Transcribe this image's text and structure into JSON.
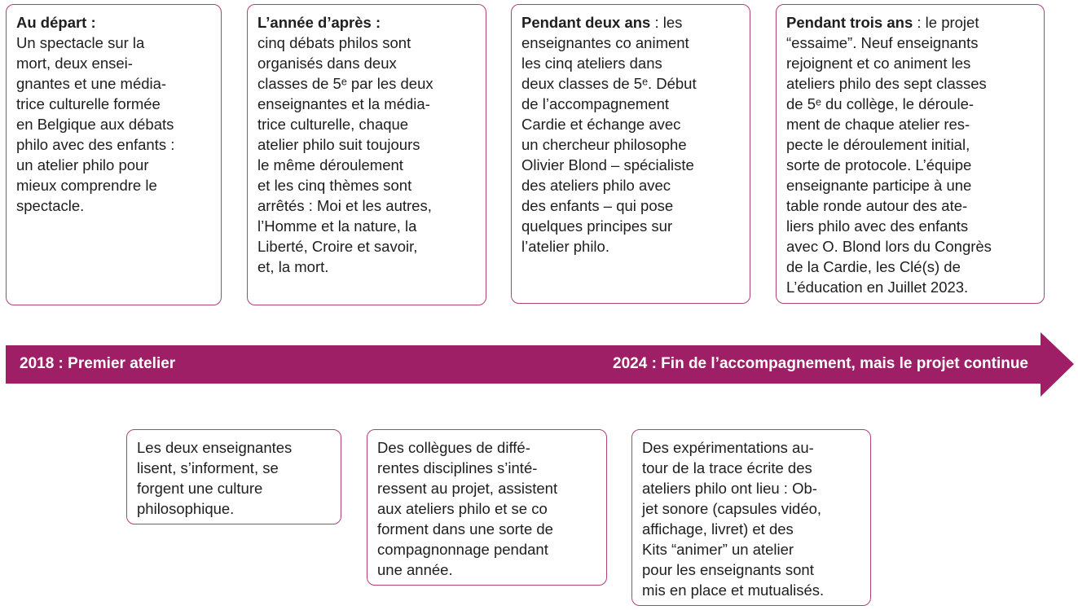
{
  "colors": {
    "accent": "#9e1f66",
    "border": "#b0407c"
  },
  "timeline": {
    "start_label": "2018 : Premier atelier",
    "end_label": "2024 : Fin de l’accompagnement, mais le projet continue"
  },
  "top_boxes": [
    {
      "bold": "Au départ :",
      "rest": "",
      "lines": [
        "Un spectacle sur la",
        "mort, deux ensei-",
        "gnantes et une média-",
        "trice culturelle formée",
        "en Belgique aux débats",
        "philo avec des enfants :",
        "un atelier philo pour",
        "mieux comprendre le",
        "spectacle."
      ]
    },
    {
      "bold": "L’année d’après :",
      "rest": "",
      "lines": [
        "cinq débats philos sont",
        "organisés dans deux",
        "classes de 5ᵉ par les deux",
        "enseignantes et la média-",
        "trice culturelle, chaque",
        "atelier philo suit toujours",
        "le même déroulement",
        "et les cinq thèmes sont",
        "arrêtés : Moi et les autres,",
        "l’Homme et la nature, la",
        "Liberté, Croire et savoir,",
        "et, la mort."
      ]
    },
    {
      "bold": "Pendant deux ans",
      "rest": " : les",
      "lines": [
        "enseignantes co animent",
        "les cinq ateliers dans",
        "deux classes de 5ᵉ. Début",
        "de l’accompagnement",
        "Cardie et échange avec",
        "un chercheur philosophe",
        "Olivier Blond – spécialiste",
        "des ateliers philo avec",
        "des enfants – qui pose",
        "quelques principes sur",
        "l’atelier philo."
      ]
    },
    {
      "bold": "Pendant trois ans",
      "rest": " : le projet",
      "lines": [
        "“essaime”. Neuf enseignants",
        "rejoignent et co animent les",
        "ateliers philo des sept classes",
        "de 5ᵉ du collège, le déroule-",
        "ment de chaque atelier res-",
        "pecte le déroulement initial,",
        "sorte de protocole. L’équipe",
        "enseignante participe à une",
        "table ronde autour des ate-",
        "liers philo avec des enfants",
        "avec O. Blond lors du Congrès",
        "de la Cardie, les Clé(s) de",
        "L’éducation en Juillet 2023."
      ]
    }
  ],
  "bottom_boxes": [
    {
      "lines": [
        "Les deux enseignantes",
        "lisent, s’informent, se",
        "forgent une culture",
        "philosophique."
      ]
    },
    {
      "lines": [
        "Des collègues de diffé-",
        "rentes disciplines s’inté-",
        "ressent au projet, assistent",
        "aux ateliers philo et se co",
        "forment dans une sorte de",
        "compagnonnage pendant",
        "une année."
      ]
    },
    {
      "lines": [
        "Des expérimentations au-",
        "tour de la trace écrite des",
        "ateliers philo ont lieu : Ob-",
        "jet sonore (capsules vidéo,",
        "affichage, livret) et des",
        "Kits “animer” un atelier",
        "pour les enseignants sont",
        "mis en place et mutualisés."
      ]
    }
  ]
}
